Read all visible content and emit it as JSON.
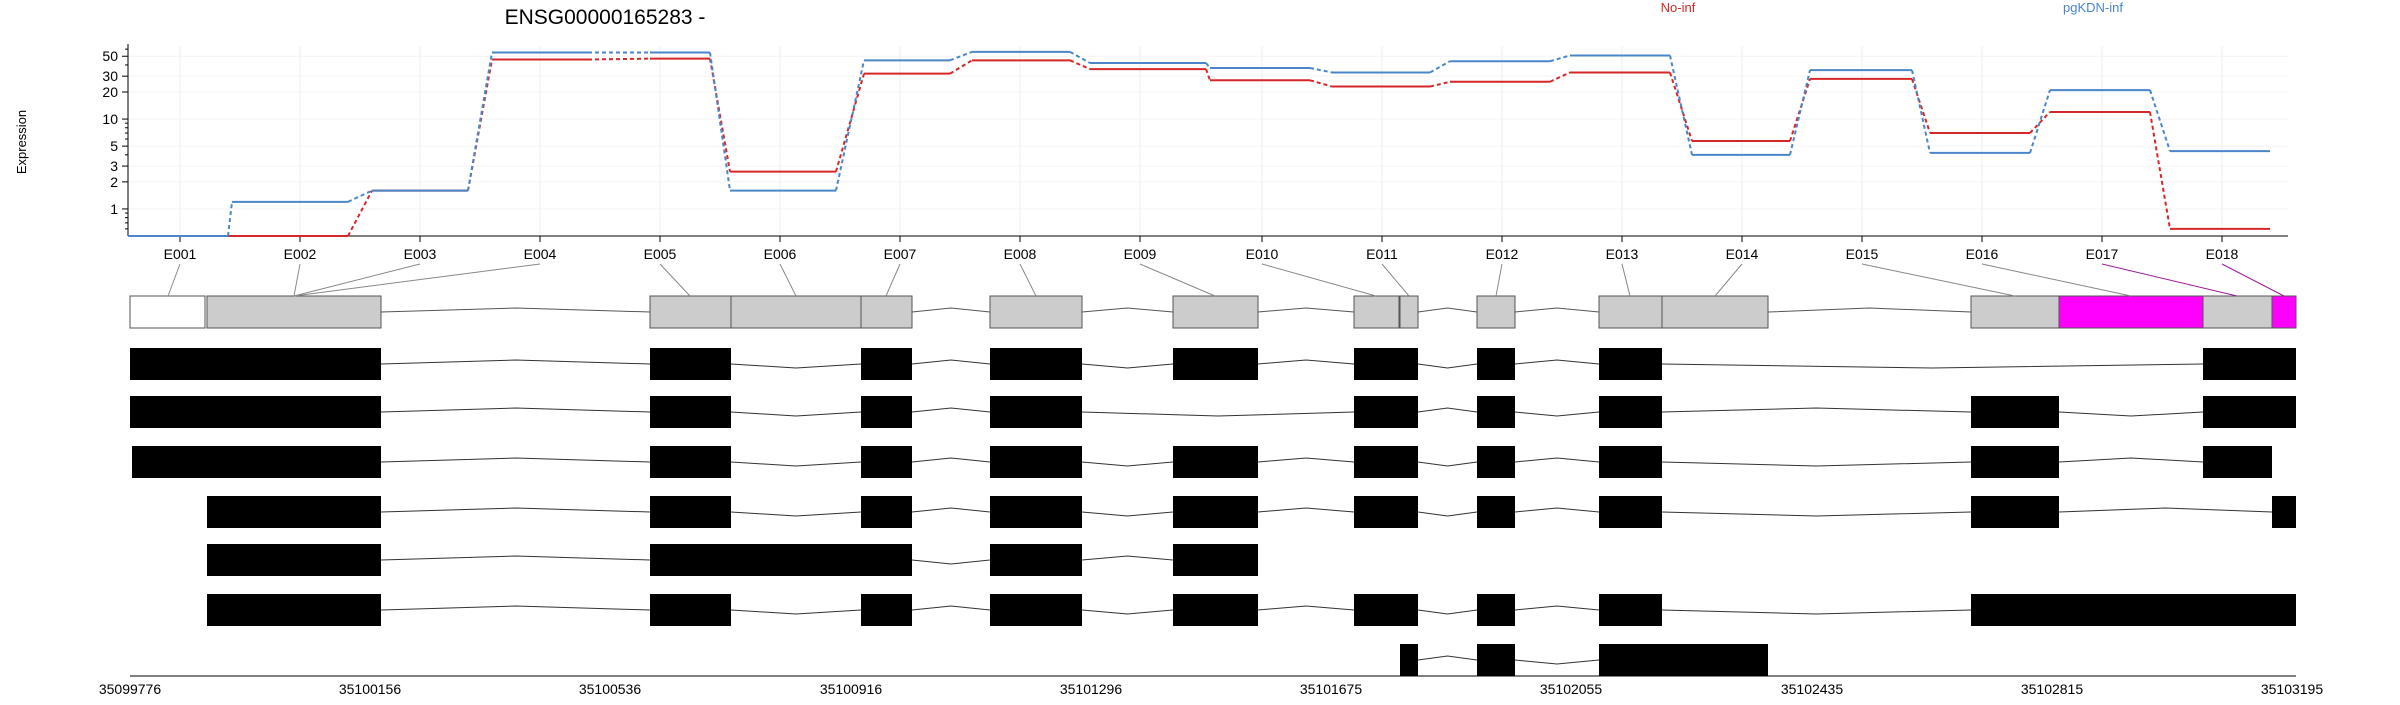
{
  "chart_data": {
    "type": "line",
    "title": "ENSG00000165283 -",
    "ylabel": "Expression",
    "y_scale": "log",
    "y_ticks": [
      "1",
      "2",
      "3",
      "5",
      "10",
      "20",
      "30",
      "50"
    ],
    "categories": [
      "E001",
      "E002",
      "E003",
      "E004",
      "E005",
      "E006",
      "E007",
      "E008",
      "E009",
      "E010",
      "E011",
      "E012",
      "E013",
      "E014",
      "E015",
      "E016",
      "E017",
      "E018"
    ],
    "series": [
      {
        "name": "No-inf",
        "color": "#d62728",
        "values": [
          0.5,
          0.5,
          1.6,
          46,
          47,
          2.6,
          32,
          45,
          36,
          27,
          23,
          26,
          33,
          5.7,
          28,
          7,
          12,
          0.6
        ]
      },
      {
        "name": "pgKDN-inf",
        "color": "#4a86c8",
        "values": [
          0.5,
          1.2,
          1.6,
          55,
          55,
          1.6,
          45,
          56,
          42,
          37,
          33,
          44,
          51,
          4,
          35,
          4.2,
          21,
          4.4
        ]
      }
    ],
    "grid": true,
    "legend_placement": "top",
    "exon_highlight_color": "#ff00ff",
    "coordinate_ticks": [
      "35099776",
      "35100156",
      "35100536",
      "35100916",
      "35101296",
      "35101675",
      "35102055",
      "35102435",
      "35102815",
      "35103195"
    ]
  }
}
